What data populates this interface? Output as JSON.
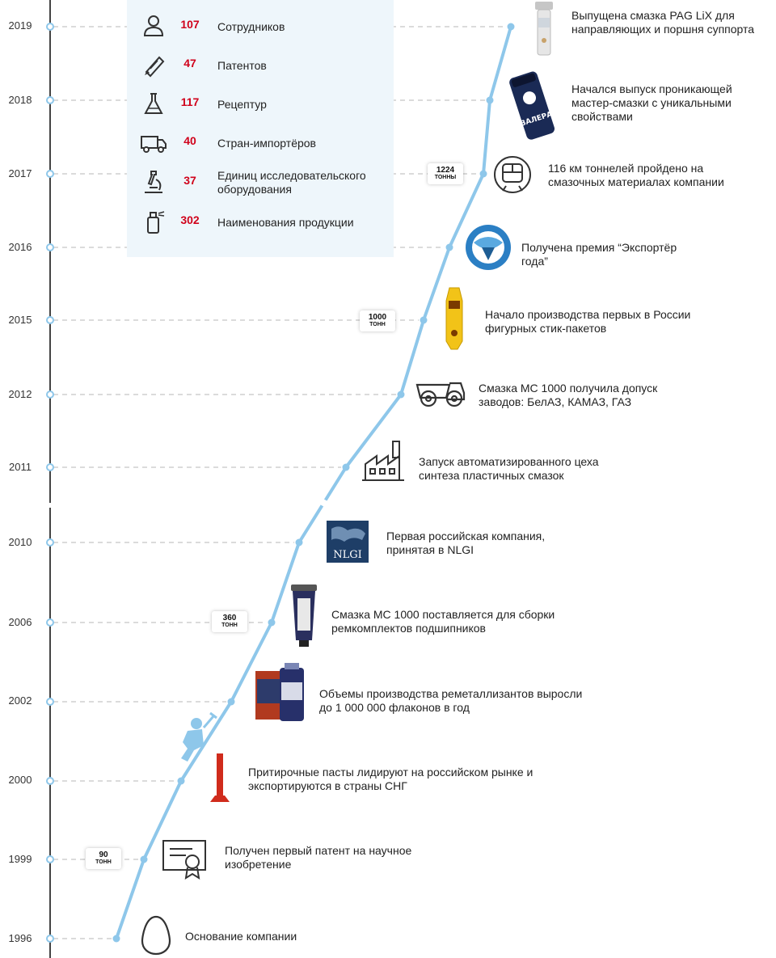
{
  "stats": [
    {
      "icon": "person-icon",
      "value": "107",
      "label": "Сотрудников"
    },
    {
      "icon": "diploma-scroll-icon",
      "value": "47",
      "label": "Патентов"
    },
    {
      "icon": "flask-icon",
      "value": "117",
      "label": "Рецептур"
    },
    {
      "icon": "truck-icon",
      "value": "40",
      "label": "Стран-импортёров"
    },
    {
      "icon": "microscope-icon",
      "value": "37",
      "label": "Единиц исследовательского оборудования"
    },
    {
      "icon": "spray-can-icon",
      "value": "302",
      "label": "Наименования продукции"
    }
  ],
  "timeline": [
    {
      "year": "2019",
      "event": "Выпущена смазка PAG LiX для направляющих и поршня суппорта",
      "icon": "lubricant-tube-icon"
    },
    {
      "year": "2018",
      "event": "Начался выпуск проникающей мастер-смазки с уникальными свойствами",
      "icon": "spray-can-product-icon"
    },
    {
      "year": "2017",
      "event": "116 км тоннелей пройдено на смазочных материалах компании",
      "icon": "metro-train-icon",
      "badge": {
        "value": "1224",
        "unit": "ТОННЫ"
      }
    },
    {
      "year": "2016",
      "event": "Получена премия “Экспортёр года”",
      "icon": "award-logo-icon"
    },
    {
      "year": "2015",
      "event": "Начало производства первых в России фигурных стик-пакетов",
      "icon": "stick-pack-icon",
      "badge": {
        "value": "1000",
        "unit": "ТОНН"
      }
    },
    {
      "year": "2012",
      "event": "Смазка МС 1000 получила допуск заводов: БелАЗ, КАМАЗ, ГАЗ",
      "icon": "dump-truck-icon"
    },
    {
      "year": "2011",
      "event": "Запуск автоматизированного цеха синтеза пластичных смазок",
      "icon": "factory-icon"
    },
    {
      "year": "2010",
      "event": "Первая российская компания, принятая в NLGI",
      "icon": "nlgi-logo-icon",
      "logo_text": "NLGI"
    },
    {
      "year": "2006",
      "event": "Смазка МС 1000 поставляется для сборки ремкомплектов подшипников",
      "icon": "grease-tube-icon",
      "badge": {
        "value": "360",
        "unit": "ТОНН"
      }
    },
    {
      "year": "2002",
      "event": "Объемы производства реметаллизантов выросли до 1 000 000 флаконов в год",
      "icon": "bottles-icon"
    },
    {
      "year": "2000",
      "event": "Притирочные пасты лидируют на российском рынке и экспортируются в страны СНГ",
      "icon": "paste-tube-icon"
    },
    {
      "year": "1999",
      "event": "Получен первый патент на научное изобретение",
      "icon": "certificate-icon",
      "badge": {
        "value": "90",
        "unit": "ТОНН"
      }
    },
    {
      "year": "1996",
      "event": "Основание компании",
      "icon": "egg-icon"
    }
  ],
  "colors": {
    "line": "#8ec7ea",
    "dash": "#cfcfcf",
    "stat_value": "#d0021b",
    "panel": "#eef6fb",
    "axis": "#444444"
  }
}
